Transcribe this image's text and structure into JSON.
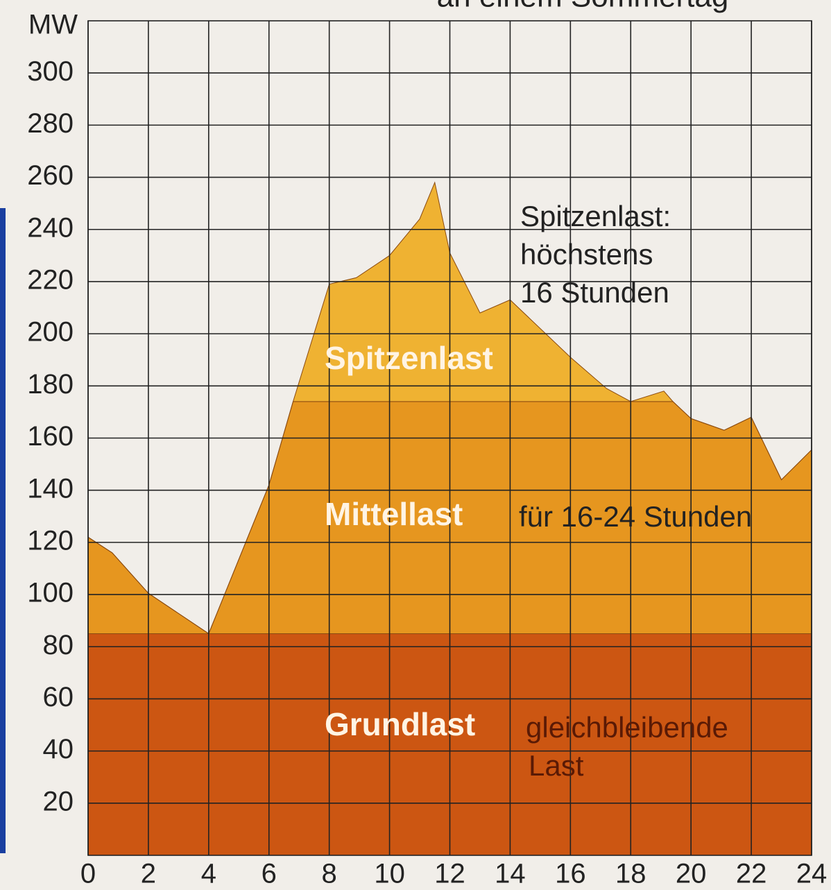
{
  "chart_data": {
    "type": "stacked_area",
    "title": "an einem Sommertag",
    "y_label": "MW",
    "x": [
      0,
      0.8,
      2,
      4,
      6,
      6.8,
      8,
      8.9,
      10,
      11,
      11.5,
      12,
      13,
      14,
      16,
      17.2,
      18,
      19.1,
      19.4,
      20,
      21.1,
      22,
      23,
      24
    ],
    "series": [
      {
        "name": "Grundlast",
        "color": "#cc5612",
        "values": [
          85,
          85,
          85,
          85,
          85,
          85,
          85,
          85,
          85,
          85,
          85,
          85,
          85,
          85,
          85,
          85,
          85,
          85,
          85,
          85,
          85,
          85,
          85,
          85
        ]
      },
      {
        "name": "Mittellast",
        "color": "#e6961f",
        "values": [
          37,
          31,
          15.5,
          0,
          57,
          89,
          89,
          89,
          89,
          89,
          89,
          89,
          89,
          89,
          89,
          89,
          89,
          89,
          89,
          82.5,
          78,
          83,
          59,
          70.5
        ]
      },
      {
        "name": "Spitzenlast",
        "color": "#efb232",
        "values": [
          0,
          0,
          0,
          0,
          0,
          0,
          45,
          47.5,
          56,
          70,
          84,
          57,
          34,
          39,
          17,
          5,
          0,
          4,
          0,
          0,
          0,
          0,
          0,
          0
        ]
      }
    ],
    "annotations": [
      [
        "Spitzenlast:",
        "höchstens",
        "16 Stunden"
      ],
      [
        "für 16-24 Stunden"
      ],
      [
        "gleichbleibende",
        "Last"
      ]
    ],
    "xlim": [
      0,
      24
    ],
    "xticks": [
      0,
      2,
      4,
      6,
      8,
      10,
      12,
      14,
      16,
      18,
      20,
      22,
      24
    ],
    "ylim": [
      0,
      320
    ],
    "yticks": [
      20,
      40,
      60,
      80,
      100,
      120,
      140,
      160,
      180,
      200,
      220,
      240,
      260,
      280,
      300
    ],
    "grid": true
  }
}
